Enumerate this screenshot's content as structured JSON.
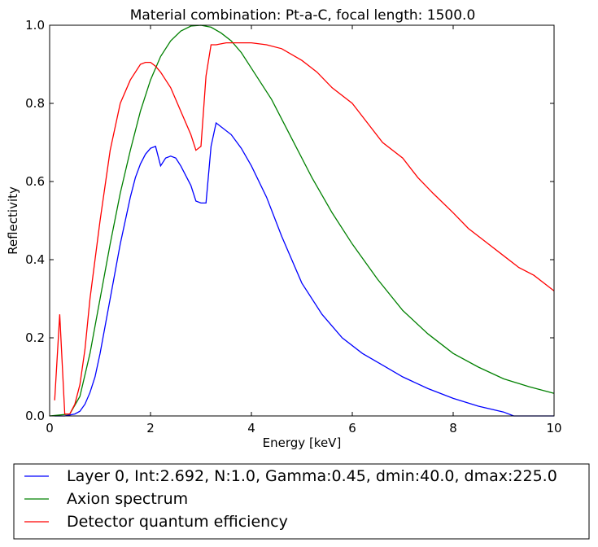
{
  "chart_data": {
    "type": "line",
    "title": "Material combination: Pt-a-C, focal length: 1500.0",
    "xlabel": "Energy [keV]",
    "ylabel": "Reflectivity",
    "xlim": [
      0,
      10
    ],
    "ylim": [
      0,
      1.0
    ],
    "x_ticks": [
      "0",
      "2",
      "4",
      "6",
      "8",
      "10"
    ],
    "y_ticks": [
      "0.0",
      "0.2",
      "0.4",
      "0.6",
      "0.8",
      "1.0"
    ],
    "grid": false,
    "legend_position": "below",
    "series": [
      {
        "name": "Layer 0, Int:2.692, N:1.0, Gamma:0.45, dmin:40.0, dmax:225.0",
        "color": "#0000ff",
        "x": [
          0.1,
          0.3,
          0.5,
          0.6,
          0.7,
          0.8,
          0.9,
          1.0,
          1.2,
          1.4,
          1.6,
          1.7,
          1.8,
          1.9,
          2.0,
          2.1,
          2.2,
          2.3,
          2.4,
          2.5,
          2.6,
          2.7,
          2.8,
          2.9,
          3.0,
          3.1,
          3.2,
          3.3,
          3.6,
          3.8,
          4.0,
          4.3,
          4.6,
          5.0,
          5.4,
          5.8,
          6.2,
          6.6,
          7.0,
          7.5,
          8.0,
          8.5,
          9.0,
          9.2,
          10.0
        ],
        "y": [
          0.0,
          0.0,
          0.005,
          0.012,
          0.03,
          0.06,
          0.1,
          0.16,
          0.3,
          0.44,
          0.56,
          0.61,
          0.645,
          0.67,
          0.685,
          0.69,
          0.64,
          0.66,
          0.665,
          0.66,
          0.64,
          0.615,
          0.59,
          0.55,
          0.545,
          0.545,
          0.69,
          0.75,
          0.72,
          0.685,
          0.64,
          0.56,
          0.46,
          0.34,
          0.26,
          0.2,
          0.16,
          0.13,
          0.1,
          0.07,
          0.045,
          0.025,
          0.01,
          0.0,
          0.0
        ]
      },
      {
        "name": "Axion spectrum",
        "color": "#008000",
        "x": [
          0.0,
          0.4,
          0.6,
          0.8,
          1.0,
          1.2,
          1.4,
          1.6,
          1.8,
          2.0,
          2.2,
          2.4,
          2.6,
          2.8,
          3.0,
          3.2,
          3.4,
          3.6,
          3.8,
          4.0,
          4.4,
          4.8,
          5.2,
          5.6,
          6.0,
          6.5,
          7.0,
          7.5,
          8.0,
          8.5,
          9.0,
          9.5,
          10.0
        ],
        "y": [
          0.0,
          0.005,
          0.05,
          0.16,
          0.3,
          0.44,
          0.57,
          0.68,
          0.78,
          0.86,
          0.92,
          0.96,
          0.985,
          0.998,
          1.0,
          0.995,
          0.98,
          0.96,
          0.93,
          0.89,
          0.81,
          0.71,
          0.61,
          0.52,
          0.44,
          0.35,
          0.27,
          0.21,
          0.16,
          0.125,
          0.095,
          0.075,
          0.058
        ]
      },
      {
        "name": "Detector quantum efficiency",
        "color": "#ff0000",
        "x": [
          0.1,
          0.2,
          0.3,
          0.4,
          0.5,
          0.6,
          0.7,
          0.8,
          1.0,
          1.2,
          1.4,
          1.6,
          1.8,
          1.9,
          2.0,
          2.1,
          2.2,
          2.3,
          2.4,
          2.6,
          2.8,
          2.9,
          3.0,
          3.1,
          3.2,
          3.3,
          3.5,
          3.7,
          4.0,
          4.3,
          4.6,
          5.0,
          5.3,
          5.6,
          6.0,
          6.3,
          6.6,
          7.0,
          7.3,
          7.6,
          8.0,
          8.3,
          8.6,
          9.0,
          9.3,
          9.6,
          10.0
        ],
        "y": [
          0.04,
          0.26,
          0.005,
          0.005,
          0.03,
          0.08,
          0.17,
          0.3,
          0.5,
          0.68,
          0.8,
          0.86,
          0.9,
          0.905,
          0.905,
          0.895,
          0.88,
          0.86,
          0.84,
          0.78,
          0.72,
          0.68,
          0.69,
          0.87,
          0.95,
          0.95,
          0.955,
          0.955,
          0.955,
          0.95,
          0.94,
          0.91,
          0.88,
          0.84,
          0.8,
          0.75,
          0.7,
          0.66,
          0.61,
          0.57,
          0.52,
          0.48,
          0.45,
          0.41,
          0.38,
          0.36,
          0.32
        ]
      }
    ]
  }
}
